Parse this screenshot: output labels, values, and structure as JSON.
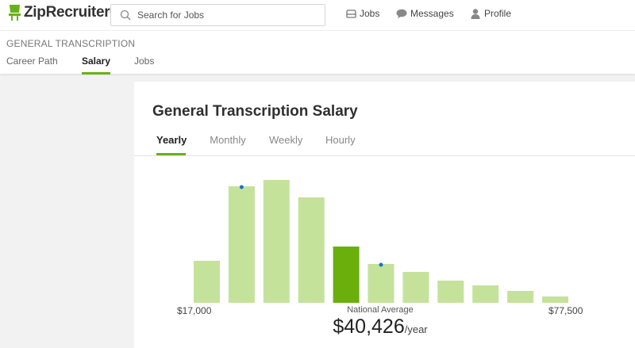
{
  "brand": {
    "name": "ZipRecruiter",
    "reg": "®",
    "accent": "#69b11b"
  },
  "search": {
    "placeholder": "Search for Jobs"
  },
  "nav": [
    {
      "label": "Jobs",
      "icon": "briefcase-icon"
    },
    {
      "label": "Messages",
      "icon": "chat-bubble-icon"
    },
    {
      "label": "Profile",
      "icon": "person-icon"
    }
  ],
  "subheader": {
    "breadcrumb": "GENERAL TRANSCRIPTION",
    "tabs": [
      {
        "label": "Career Path",
        "active": false
      },
      {
        "label": "Salary",
        "active": true
      },
      {
        "label": "Jobs",
        "active": false
      }
    ]
  },
  "card": {
    "title": "General Transcription Salary",
    "period_tabs": [
      {
        "label": "Yearly",
        "active": true
      },
      {
        "label": "Monthly",
        "active": false
      },
      {
        "label": "Weekly",
        "active": false
      },
      {
        "label": "Hourly",
        "active": false
      }
    ]
  },
  "chart_data": {
    "type": "bar",
    "min_label": "$17,000",
    "max_label": "$77,500",
    "values": [
      53,
      147,
      155,
      133,
      71,
      49,
      39,
      28,
      22,
      15,
      8
    ],
    "highlight_index": 4,
    "markers_at": [
      1,
      5
    ],
    "bar_color": "#c5e29b",
    "highlight_color": "#6aaf0c",
    "marker_color": "#1a73c8",
    "average_label": "National Average",
    "average_value": "$40,426",
    "average_unit": "/year"
  }
}
